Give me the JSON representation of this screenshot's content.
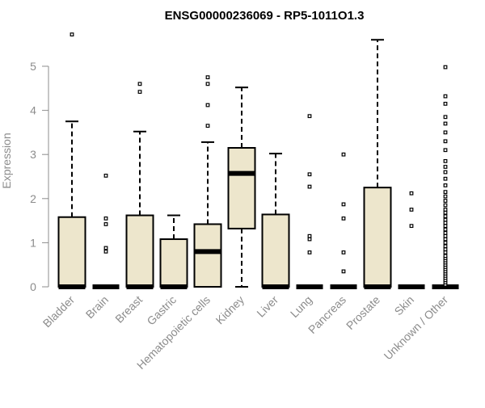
{
  "chart_data": {
    "type": "box",
    "title": "ENSG00000236069 - RP5-1011O1.3",
    "xlabel": "",
    "ylabel": "Expression",
    "ylim": [
      0,
      5.8
    ],
    "yticks": [
      0,
      1,
      2,
      3,
      4,
      5
    ],
    "grid": false,
    "box_fill": "#ede6cc",
    "box_stroke": "#000000",
    "categories": [
      "Bladder",
      "Brain",
      "Breast",
      "Gastric",
      "Hematopoietic cells",
      "Kidney",
      "Liver",
      "Lung",
      "Pancreas",
      "Prostate",
      "Skin",
      "Unknown / Other"
    ],
    "boxes": [
      {
        "category": "Bladder",
        "whisker_low": 0,
        "q1": 0,
        "median": 0,
        "q3": 1.58,
        "whisker_high": 3.75,
        "outliers": [
          5.72
        ]
      },
      {
        "category": "Brain",
        "whisker_low": 0,
        "q1": 0,
        "median": 0,
        "q3": 0,
        "whisker_high": 0,
        "outliers": [
          0.8,
          0.88,
          1.42,
          1.55,
          2.52
        ]
      },
      {
        "category": "Breast",
        "whisker_low": 0,
        "q1": 0,
        "median": 0,
        "q3": 1.62,
        "whisker_high": 3.52,
        "outliers": [
          4.42,
          4.6
        ]
      },
      {
        "category": "Gastric",
        "whisker_low": 0,
        "q1": 0,
        "median": 0,
        "q3": 1.08,
        "whisker_high": 1.62,
        "outliers": []
      },
      {
        "category": "Hematopoietic cells",
        "whisker_low": 0,
        "q1": 0,
        "median": 0.8,
        "q3": 1.42,
        "whisker_high": 3.28,
        "outliers": [
          3.65,
          4.12,
          4.6,
          4.75
        ]
      },
      {
        "category": "Kidney",
        "whisker_low": 0,
        "q1": 1.32,
        "median": 2.57,
        "q3": 3.15,
        "whisker_high": 4.52,
        "outliers": []
      },
      {
        "category": "Liver",
        "whisker_low": 0,
        "q1": 0,
        "median": 0,
        "q3": 1.64,
        "whisker_high": 3.02,
        "outliers": []
      },
      {
        "category": "Lung",
        "whisker_low": 0,
        "q1": 0,
        "median": 0,
        "q3": 0,
        "whisker_high": 0,
        "outliers": [
          0.78,
          1.08,
          1.15,
          2.27,
          2.55,
          3.87
        ]
      },
      {
        "category": "Pancreas",
        "whisker_low": 0,
        "q1": 0,
        "median": 0,
        "q3": 0,
        "whisker_high": 0,
        "outliers": [
          0.35,
          0.78,
          1.55,
          1.87,
          3.0
        ]
      },
      {
        "category": "Prostate",
        "whisker_low": 0,
        "q1": 0,
        "median": 0,
        "q3": 2.25,
        "whisker_high": 5.6,
        "outliers": []
      },
      {
        "category": "Skin",
        "whisker_low": 0,
        "q1": 0,
        "median": 0,
        "q3": 0,
        "whisker_high": 0,
        "outliers": [
          1.38,
          1.75,
          2.12
        ]
      },
      {
        "category": "Unknown / Other",
        "whisker_low": 0,
        "q1": 0,
        "median": 0,
        "q3": 0,
        "whisker_high": 0,
        "outliers": [
          0.05,
          0.1,
          0.15,
          0.2,
          0.25,
          0.3,
          0.35,
          0.4,
          0.45,
          0.5,
          0.55,
          0.6,
          0.65,
          0.7,
          0.78,
          0.85,
          0.92,
          1.0,
          1.08,
          1.15,
          1.22,
          1.3,
          1.38,
          1.45,
          1.52,
          1.6,
          1.68,
          1.75,
          1.85,
          1.95,
          2.05,
          2.15,
          2.3,
          2.45,
          2.6,
          2.72,
          2.85,
          3.1,
          3.3,
          3.5,
          3.7,
          3.85,
          4.15,
          4.32,
          4.98
        ]
      }
    ]
  }
}
